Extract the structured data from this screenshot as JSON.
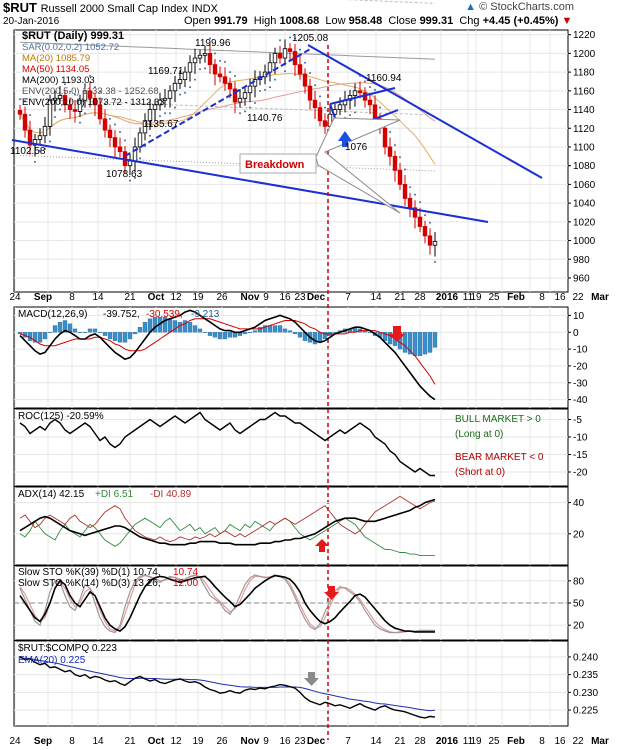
{
  "header": {
    "symbol": "$RUT",
    "name": "Russell 2000 Small Cap Index",
    "exchange": "INDX",
    "date": "20-Jan-2016",
    "open_label": "Open",
    "open": "991.79",
    "high_label": "High",
    "high": "1008.68",
    "low_label": "Low",
    "low": "958.48",
    "close_label": "Close",
    "close": "999.31",
    "chg_label": "Chg",
    "chg": "+4.45 (+0.45%)",
    "brand": "© StockCharts.com",
    "chg_icon": "down-triangle-icon"
  },
  "colors": {
    "trendline": "#1a2fd6",
    "breakdown_line": "#d20000",
    "bear_candle": "#d40000",
    "macd_hist": "#3a8fc9",
    "signal": "#d40000",
    "ema": "#1a2fb0",
    "bull_text": "#1a6e1a",
    "bear_text": "#b00000",
    "arrow_red": "#e41a1a",
    "arrow_blue": "#1a4fe0",
    "arrow_gray": "#8a8a8a"
  },
  "x_axis": {
    "labels": [
      "24",
      "Sep",
      "8",
      "14",
      "21",
      "Oct",
      "12",
      "19",
      "26",
      "Nov",
      "9",
      "16",
      "23",
      "Dec",
      "7",
      "14",
      "21",
      "28",
      "2016",
      "11",
      "19",
      "25",
      "Feb",
      "8",
      "16",
      "22",
      "Mar"
    ]
  },
  "chart_data": [
    {
      "type": "candlestick",
      "title": "$RUT (Daily) 999.31",
      "ylim": [
        945,
        1225
      ],
      "yticks": [
        960,
        980,
        1000,
        1020,
        1040,
        1060,
        1080,
        1100,
        1120,
        1140,
        1160,
        1180,
        1200,
        1220
      ],
      "legend": [
        {
          "name": "$RUT (Daily)",
          "value": "999.31",
          "color": "#000000"
        },
        {
          "name": "SAR(0.02,0.2)",
          "value": "1052.72",
          "color": "#4a6fa0"
        },
        {
          "name": "MA(20)",
          "value": "1085.79",
          "color": "#c07a00"
        },
        {
          "name": "MA(50)",
          "value": "1134.05",
          "color": "#d40000"
        },
        {
          "name": "MA(200)",
          "value": "1193.03",
          "color": "#000000"
        },
        {
          "name": "ENV(200,5.0)",
          "value": "1133.38 - 1252.68",
          "color": "#555555"
        },
        {
          "name": "ENV(200,10.0)",
          "value": "1073.72 - 1312.33",
          "color": "#000000"
        }
      ],
      "annotations": [
        "1102.58",
        "1078.63",
        "1169.71",
        "1135.67",
        "1199.96",
        "1140.76",
        "1205.08",
        "1160.94",
        "1076",
        "Breakdown"
      ],
      "closes": [
        1135,
        1118,
        1102,
        1108,
        1112,
        1122,
        1150,
        1152,
        1155,
        1145,
        1140,
        1138,
        1150,
        1160,
        1152,
        1145,
        1130,
        1118,
        1110,
        1100,
        1095,
        1080,
        1085,
        1100,
        1115,
        1128,
        1140,
        1145,
        1150,
        1152,
        1160,
        1168,
        1172,
        1180,
        1190,
        1195,
        1198,
        1200,
        1188,
        1178,
        1175,
        1168,
        1162,
        1148,
        1152,
        1158,
        1165,
        1172,
        1175,
        1180,
        1190,
        1200,
        1195,
        1205,
        1202,
        1188,
        1178,
        1165,
        1150,
        1142,
        1128,
        1122,
        1135,
        1140,
        1145,
        1150,
        1155,
        1160,
        1158,
        1150,
        1145,
        1130,
        1120,
        1100,
        1090,
        1075,
        1060,
        1045,
        1035,
        1025,
        1015,
        1005,
        995,
        999
      ]
    },
    {
      "type": "line",
      "title": "MACD(12,26,9)",
      "values_text": "-39.752, -30.539, -9.213",
      "label_parts": [
        "MACD(12,26,9)",
        "-39.752,",
        "-30.539,",
        "-9.213"
      ],
      "ylim": [
        -45,
        15
      ],
      "yticks": [
        10,
        0,
        -10,
        -20,
        -30,
        -40
      ],
      "macd": [
        -2,
        -5,
        -8,
        -11,
        -13,
        -12,
        -8,
        -4,
        -1,
        1,
        0,
        -2,
        -4,
        -4,
        -2,
        -1,
        -3,
        -6,
        -9,
        -12,
        -14,
        -16,
        -15,
        -12,
        -8,
        -4,
        0,
        3,
        5,
        7,
        8,
        9,
        10,
        12,
        13,
        12,
        10,
        8,
        6,
        4,
        2,
        1,
        1,
        0,
        0,
        1,
        2,
        3,
        5,
        7,
        8,
        9,
        10,
        9,
        8,
        6,
        3,
        0,
        -3,
        -5,
        -6,
        -5,
        -3,
        -1,
        0,
        1,
        2,
        3,
        3,
        2,
        1,
        -1,
        -3,
        -6,
        -9,
        -12,
        -16,
        -20,
        -24,
        -28,
        -32,
        -35,
        -38,
        -40
      ],
      "signal": [
        -1,
        -2,
        -3,
        -5,
        -7,
        -8,
        -8,
        -8,
        -7,
        -6,
        -5,
        -4,
        -4,
        -4,
        -4,
        -3,
        -3,
        -4,
        -5,
        -7,
        -8,
        -10,
        -11,
        -11,
        -11,
        -10,
        -8,
        -6,
        -4,
        -2,
        0,
        2,
        4,
        5,
        7,
        8,
        8,
        8,
        8,
        7,
        6,
        5,
        4,
        3,
        2,
        2,
        2,
        2,
        2,
        3,
        4,
        5,
        6,
        7,
        7,
        7,
        6,
        5,
        3,
        2,
        0,
        -1,
        -1,
        -1,
        -1,
        -1,
        0,
        0,
        1,
        1,
        1,
        1,
        0,
        -1,
        -2,
        -4,
        -6,
        -8,
        -11,
        -14,
        -18,
        -22,
        -26,
        -31
      ]
    },
    {
      "type": "line",
      "title": "ROC(125) -20.59%",
      "ylim": [
        -24,
        -2
      ],
      "yticks": [
        -5,
        -10,
        -15,
        -20
      ],
      "annotations": [
        "BULL MARKET > 0",
        "(Long at 0)",
        "BEAR MARKET < 0",
        "(Short at 0)"
      ],
      "values": [
        -6,
        -7,
        -9,
        -8,
        -7,
        -8,
        -6,
        -5,
        -6,
        -8,
        -9,
        -8,
        -7,
        -6,
        -7,
        -9,
        -11,
        -10,
        -12,
        -13,
        -12,
        -10,
        -9,
        -8,
        -7,
        -6,
        -5,
        -6,
        -7,
        -6,
        -5,
        -4,
        -5,
        -6,
        -5,
        -4,
        -3,
        -5,
        -6,
        -7,
        -8,
        -7,
        -6,
        -8,
        -9,
        -8,
        -7,
        -6,
        -5,
        -5,
        -4,
        -3,
        -4,
        -4,
        -5,
        -6,
        -6,
        -7,
        -8,
        -9,
        -10,
        -11,
        -10,
        -9,
        -8,
        -9,
        -8,
        -7,
        -6,
        -7,
        -8,
        -10,
        -11,
        -12,
        -14,
        -15,
        -17,
        -18,
        -19,
        -20,
        -19,
        -20,
        -21,
        -21
      ]
    },
    {
      "type": "line",
      "title": "ADX(14) 42.15 +DI 6.51 -DI 40.89",
      "label_parts": [
        "ADX(14) 42.15",
        "+DI 6.51",
        "-DI 40.89"
      ],
      "ylim": [
        0,
        50
      ],
      "yticks": [
        40,
        20
      ],
      "adx": [
        22,
        24,
        26,
        28,
        30,
        31,
        30,
        28,
        26,
        24,
        22,
        21,
        20,
        19,
        20,
        21,
        22,
        23,
        24,
        25,
        25,
        24,
        22,
        20,
        18,
        17,
        16,
        15,
        14,
        14,
        13,
        13,
        13,
        13,
        14,
        14,
        15,
        15,
        15,
        15,
        14,
        14,
        14,
        13,
        13,
        13,
        13,
        13,
        14,
        14,
        14,
        15,
        15,
        16,
        16,
        17,
        17,
        18,
        19,
        20,
        22,
        24,
        26,
        28,
        29,
        30,
        30,
        30,
        29,
        28,
        28,
        28,
        29,
        30,
        31,
        32,
        33,
        34,
        35,
        37,
        38,
        40,
        41,
        42
      ],
      "plus_di": [
        20,
        18,
        22,
        28,
        24,
        20,
        18,
        16,
        22,
        26,
        22,
        20,
        18,
        22,
        26,
        24,
        20,
        16,
        14,
        12,
        14,
        18,
        22,
        26,
        28,
        30,
        28,
        26,
        24,
        28,
        30,
        26,
        22,
        24,
        26,
        22,
        24,
        20,
        22,
        24,
        20,
        22,
        26,
        24,
        22,
        26,
        24,
        28,
        26,
        24,
        22,
        26,
        28,
        30,
        28,
        24,
        20,
        18,
        16,
        18,
        20,
        22,
        24,
        26,
        28,
        30,
        28,
        26,
        22,
        18,
        16,
        14,
        12,
        10,
        10,
        9,
        8,
        8,
        7,
        7,
        6,
        6,
        6,
        6
      ],
      "minus_di": [
        30,
        32,
        28,
        24,
        26,
        30,
        32,
        30,
        28,
        26,
        30,
        32,
        28,
        26,
        24,
        26,
        30,
        34,
        36,
        38,
        36,
        30,
        26,
        22,
        20,
        18,
        17,
        16,
        18,
        16,
        15,
        16,
        18,
        17,
        16,
        18,
        17,
        18,
        20,
        18,
        20,
        22,
        20,
        18,
        20,
        18,
        20,
        22,
        24,
        26,
        28,
        26,
        28,
        30,
        28,
        26,
        28,
        30,
        32,
        34,
        36,
        38,
        34,
        30,
        26,
        24,
        22,
        20,
        22,
        26,
        30,
        34,
        36,
        38,
        40,
        42,
        44,
        42,
        40,
        38,
        36,
        38,
        40,
        41
      ]
    },
    {
      "type": "line",
      "title": "Slow STO",
      "label_lines": [
        "Slow STO %K(39) %D(1) 10.74, 10.74",
        "Slow STO %K(14) %D(3) 13.26, 12.00"
      ],
      "line1_parts": [
        "Slow STO %K(39) %D(1) 10.74,",
        "10.74"
      ],
      "line2_parts": [
        "Slow STO %K(14) %D(3) 13.26,",
        "12.00"
      ],
      "ylim": [
        0,
        100
      ],
      "yticks": [
        80,
        50,
        20
      ],
      "k39": [
        60,
        50,
        40,
        30,
        25,
        35,
        50,
        70,
        80,
        75,
        60,
        50,
        45,
        55,
        65,
        60,
        45,
        30,
        20,
        15,
        12,
        18,
        30,
        45,
        60,
        72,
        80,
        84,
        86,
        85,
        82,
        80,
        78,
        80,
        82,
        84,
        85,
        86,
        80,
        72,
        65,
        58,
        52,
        45,
        48,
        55,
        62,
        70,
        75,
        80,
        84,
        87,
        86,
        85,
        82,
        75,
        65,
        50,
        40,
        32,
        25,
        22,
        25,
        30,
        38,
        45,
        52,
        60,
        62,
        58,
        50,
        42,
        34,
        26,
        20,
        16,
        14,
        12,
        12,
        11,
        11,
        11,
        11,
        11
      ],
      "k14": [
        70,
        55,
        40,
        25,
        20,
        40,
        65,
        80,
        78,
        60,
        45,
        40,
        55,
        75,
        70,
        50,
        30,
        18,
        12,
        10,
        20,
        45,
        65,
        80,
        86,
        88,
        85,
        80,
        78,
        82,
        86,
        84,
        80,
        82,
        86,
        88,
        84,
        72,
        60,
        55,
        50,
        40,
        35,
        45,
        60,
        75,
        84,
        88,
        86,
        84,
        85,
        88,
        86,
        82,
        72,
        58,
        42,
        28,
        18,
        14,
        22,
        38,
        52,
        66,
        72,
        70,
        65,
        60,
        52,
        40,
        30,
        20,
        15,
        12,
        10,
        10,
        11,
        12,
        12,
        12,
        13,
        13,
        13,
        13
      ],
      "d14": [
        72,
        62,
        48,
        33,
        25,
        30,
        50,
        70,
        78,
        70,
        55,
        45,
        50,
        65,
        70,
        60,
        40,
        25,
        15,
        12,
        16,
        35,
        55,
        75,
        84,
        87,
        86,
        83,
        80,
        81,
        84,
        85,
        82,
        82,
        85,
        87,
        86,
        78,
        68,
        58,
        52,
        45,
        38,
        42,
        52,
        68,
        80,
        86,
        86,
        85,
        85,
        87,
        87,
        84,
        76,
        62,
        48,
        34,
        22,
        16,
        18,
        30,
        46,
        60,
        70,
        71,
        68,
        62,
        55,
        45,
        35,
        25,
        18,
        14,
        11,
        10,
        10,
        11,
        12,
        12,
        12,
        12,
        12,
        12
      ]
    },
    {
      "type": "line",
      "title": "$RUT:$COMPQ 0.223",
      "legend": [
        {
          "name": "EMA(20)",
          "value": "0.225",
          "color": "#1a2fb0"
        }
      ],
      "ylim": [
        0.2205,
        0.2445
      ],
      "yticks": [
        0.24,
        0.235,
        0.23,
        0.225
      ],
      "ratio": [
        0.24,
        0.2392,
        0.2395,
        0.2385,
        0.2378,
        0.2382,
        0.237,
        0.2372,
        0.2365,
        0.2358,
        0.2362,
        0.235,
        0.2345,
        0.235,
        0.234,
        0.2345,
        0.2342,
        0.2335,
        0.233,
        0.2333,
        0.2325,
        0.232,
        0.233,
        0.234,
        0.2345,
        0.2338,
        0.2332,
        0.2336,
        0.2328,
        0.2325,
        0.233,
        0.2335,
        0.2338,
        0.2332,
        0.2328,
        0.233,
        0.2325,
        0.2315,
        0.2308,
        0.2304,
        0.2298,
        0.23,
        0.2305,
        0.23,
        0.2298,
        0.2306,
        0.231,
        0.2308,
        0.2312,
        0.231,
        0.2315,
        0.2318,
        0.2322,
        0.232,
        0.2316,
        0.2312,
        0.23,
        0.2285,
        0.2275,
        0.227,
        0.2265,
        0.2272,
        0.2268,
        0.2262,
        0.2265,
        0.226,
        0.2255,
        0.2262,
        0.2268,
        0.226,
        0.2255,
        0.225,
        0.2258,
        0.2262,
        0.2255,
        0.225,
        0.2248,
        0.2245,
        0.224,
        0.2235,
        0.223,
        0.2228,
        0.2232,
        0.223
      ],
      "ema": [
        0.2398,
        0.2396,
        0.2395,
        0.2393,
        0.239,
        0.2388,
        0.2385,
        0.2383,
        0.238,
        0.2376,
        0.2373,
        0.237,
        0.2366,
        0.2363,
        0.236,
        0.2357,
        0.2354,
        0.2351,
        0.2348,
        0.2345,
        0.2342,
        0.234,
        0.2339,
        0.2339,
        0.234,
        0.234,
        0.2339,
        0.2339,
        0.2338,
        0.2337,
        0.2337,
        0.2337,
        0.2337,
        0.2337,
        0.2336,
        0.2336,
        0.2335,
        0.2333,
        0.233,
        0.2327,
        0.2324,
        0.2322,
        0.232,
        0.2318,
        0.2316,
        0.2315,
        0.2315,
        0.2314,
        0.2314,
        0.2314,
        0.2314,
        0.2314,
        0.2315,
        0.2315,
        0.2315,
        0.2315,
        0.2314,
        0.2311,
        0.2307,
        0.2303,
        0.2299,
        0.2296,
        0.2293,
        0.229,
        0.2287,
        0.2284,
        0.2281,
        0.2279,
        0.2277,
        0.2275,
        0.2273,
        0.227,
        0.2268,
        0.2267,
        0.2265,
        0.2263,
        0.2261,
        0.2259,
        0.2257,
        0.2254,
        0.2252,
        0.225,
        0.2248,
        0.225
      ]
    }
  ]
}
